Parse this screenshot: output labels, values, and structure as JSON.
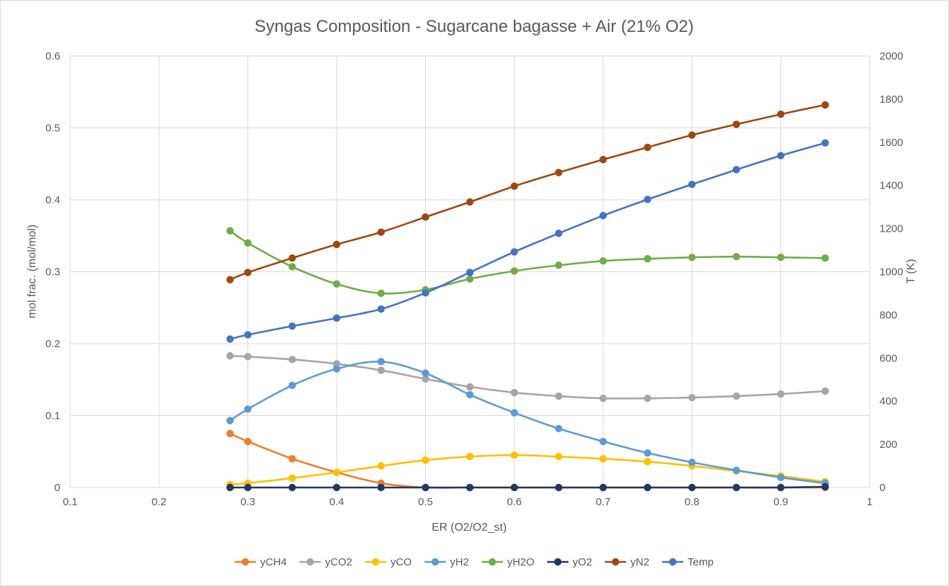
{
  "chart_data": {
    "type": "line",
    "title": "Syngas Composition - Sugarcane bagasse + Air (21% O2)",
    "xlabel": "ER (O2/O2_st)",
    "ylabel": "mol frac. (mol/mol)",
    "y2label": "T (K)",
    "xlim": [
      0.1,
      1
    ],
    "ylim": [
      0,
      0.6
    ],
    "y2lim": [
      0,
      2000
    ],
    "x_ticks": [
      "0.1",
      "0.2",
      "0.3",
      "0.4",
      "0.5",
      "0.6",
      "0.7",
      "0.8",
      "0.9",
      "1"
    ],
    "y_ticks": [
      "0",
      "0.1",
      "0.2",
      "0.3",
      "0.4",
      "0.5",
      "0.6"
    ],
    "y2_ticks": [
      "0",
      "200",
      "400",
      "600",
      "800",
      "1000",
      "1200",
      "1400",
      "1600",
      "1800",
      "2000"
    ],
    "grid": "vertical and horizontal major gridlines",
    "legend_position": "bottom",
    "x": [
      0.28,
      0.3,
      0.35,
      0.4,
      0.45,
      0.5,
      0.55,
      0.6,
      0.65,
      0.7,
      0.75,
      0.8,
      0.85,
      0.9,
      0.95
    ],
    "series": [
      {
        "name": "yCH4",
        "color": "#ED7D31",
        "axis": "left",
        "values": [
          0.075,
          0.064,
          0.04,
          0.021,
          0.006,
          0.0,
          0.0,
          0.0,
          0.0,
          0.0,
          0.0,
          0.0,
          0.0,
          0.0,
          0.0
        ]
      },
      {
        "name": "yCO2",
        "color": "#A5A5A5",
        "axis": "left",
        "values": [
          0.183,
          0.182,
          0.178,
          0.172,
          0.163,
          0.151,
          0.14,
          0.132,
          0.127,
          0.124,
          0.124,
          0.125,
          0.127,
          0.13,
          0.134
        ]
      },
      {
        "name": "yCO",
        "color": "#FFC000",
        "axis": "left",
        "values": [
          0.004,
          0.006,
          0.013,
          0.021,
          0.03,
          0.038,
          0.043,
          0.045,
          0.043,
          0.04,
          0.036,
          0.03,
          0.023,
          0.016,
          0.008
        ]
      },
      {
        "name": "yH2",
        "color": "#5B9BD5",
        "axis": "left",
        "values": [
          0.093,
          0.109,
          0.142,
          0.165,
          0.175,
          0.159,
          0.129,
          0.104,
          0.082,
          0.064,
          0.048,
          0.035,
          0.024,
          0.014,
          0.006
        ]
      },
      {
        "name": "yH2O",
        "color": "#70AD47",
        "axis": "left",
        "values": [
          0.357,
          0.34,
          0.307,
          0.283,
          0.27,
          0.275,
          0.29,
          0.301,
          0.309,
          0.315,
          0.318,
          0.32,
          0.321,
          0.32,
          0.319
        ]
      },
      {
        "name": "yO2",
        "color": "#1F3864",
        "axis": "left",
        "values": [
          0.0,
          0.0,
          0.0,
          0.0,
          0.0,
          0.0,
          0.0,
          0.0,
          0.0,
          0.0,
          0.0,
          0.0,
          0.0,
          0.0,
          0.001
        ]
      },
      {
        "name": "yN2",
        "color": "#9E480E",
        "axis": "left",
        "values": [
          0.289,
          0.299,
          0.319,
          0.338,
          0.355,
          0.376,
          0.397,
          0.419,
          0.438,
          0.456,
          0.473,
          0.49,
          0.505,
          0.519,
          0.532
        ]
      },
      {
        "name": "Temp",
        "color": "#4472C4",
        "axis": "right",
        "values": [
          688,
          708,
          748,
          785,
          827,
          902,
          997,
          1092,
          1178,
          1260,
          1335,
          1405,
          1473,
          1538,
          1597
        ]
      }
    ]
  }
}
